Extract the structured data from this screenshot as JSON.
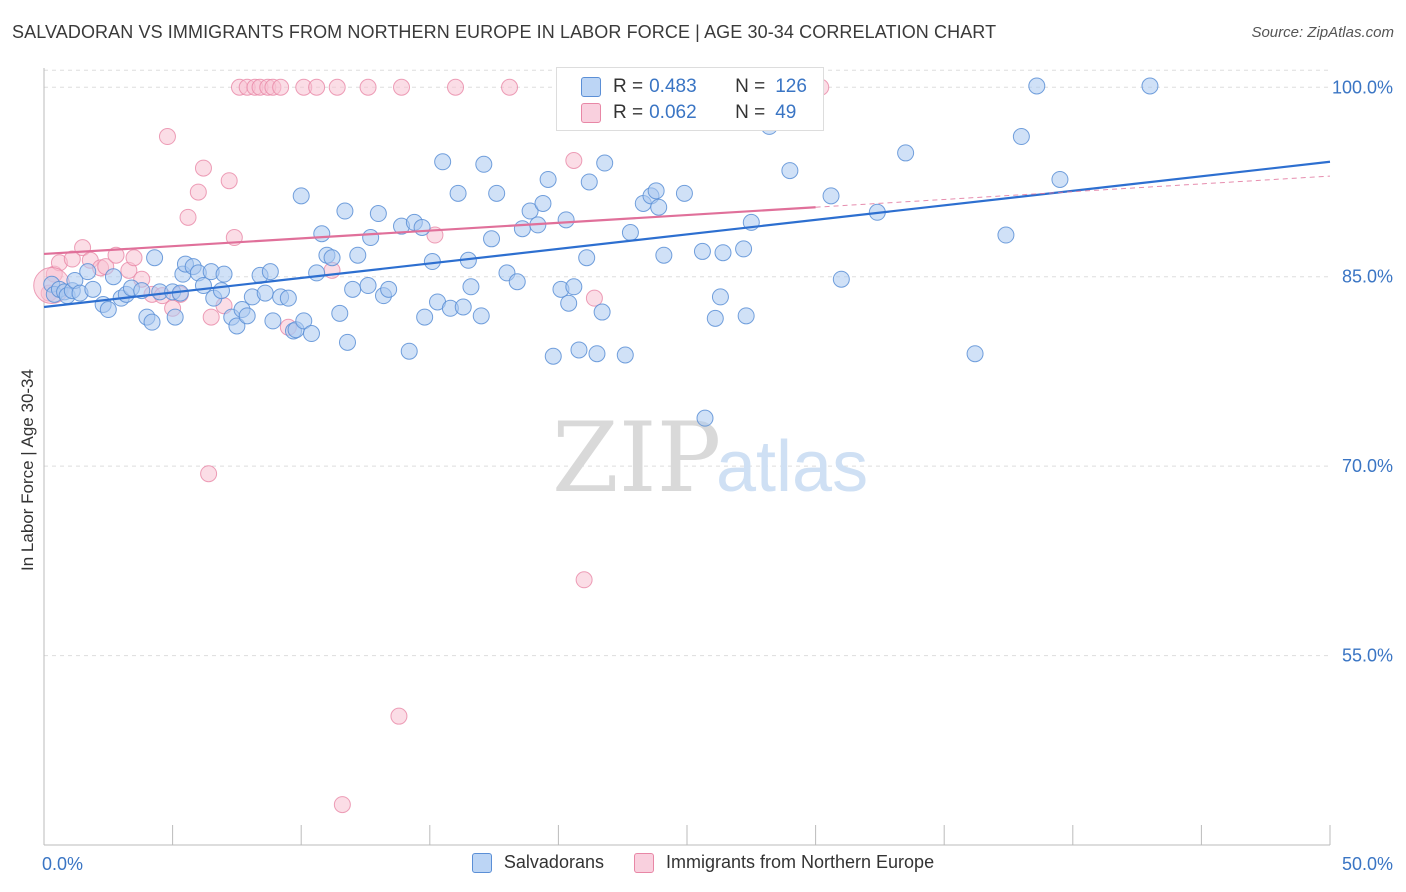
{
  "title": "SALVADORAN VS IMMIGRANTS FROM NORTHERN EUROPE IN LABOR FORCE | AGE 30-34 CORRELATION CHART",
  "source": "Source: ZipAtlas.com",
  "watermark": {
    "zip": "ZIP",
    "atlas": "atlas"
  },
  "legend": {
    "r_label": "R =",
    "n_label": "N =",
    "rows": [
      {
        "r": "0.483",
        "n": "126"
      },
      {
        "r": "0.062",
        "n": "49"
      }
    ]
  },
  "colors": {
    "blue_fill": "#a9c8f0",
    "blue_stroke": "#5b8fd6",
    "blue_line": "#2d6fd0",
    "pink_fill": "#f7c1d2",
    "pink_stroke": "#e887a6",
    "pink_line": "#e0709a",
    "axis_text": "#3a75c4",
    "grid": "#dddddd"
  },
  "chart_data": {
    "type": "scatter",
    "xlabel": "",
    "ylabel": "In Labor Force | Age 30-34",
    "xlim": [
      0,
      50
    ],
    "ylim": [
      40,
      102
    ],
    "x_tick_labels": [
      "0.0%",
      "50.0%"
    ],
    "y_ticks": [
      {
        "value": 100,
        "label": "100.0%"
      },
      {
        "value": 85,
        "label": "85.0%"
      },
      {
        "value": 70,
        "label": "70.0%"
      },
      {
        "value": 55,
        "label": "55.0%"
      }
    ],
    "grid": true,
    "series": [
      {
        "name": "Salvadorans",
        "color": "#a9c8f0",
        "trend": {
          "x0": 0,
          "y0": 82.6,
          "x1": 50,
          "y1": 94.1
        },
        "points": [
          [
            0.3,
            84.4
          ],
          [
            0.4,
            83.6
          ],
          [
            0.6,
            84.0
          ],
          [
            0.8,
            83.8
          ],
          [
            0.9,
            83.5
          ],
          [
            1.1,
            83.9
          ],
          [
            1.2,
            84.7
          ],
          [
            1.4,
            83.7
          ],
          [
            1.7,
            85.4
          ],
          [
            1.9,
            84.0
          ],
          [
            2.3,
            82.8
          ],
          [
            2.5,
            82.4
          ],
          [
            2.7,
            85.0
          ],
          [
            3.0,
            83.3
          ],
          [
            3.2,
            83.6
          ],
          [
            3.4,
            84.1
          ],
          [
            3.8,
            83.9
          ],
          [
            4.0,
            81.8
          ],
          [
            4.2,
            81.4
          ],
          [
            4.3,
            86.5
          ],
          [
            4.5,
            83.8
          ],
          [
            5.0,
            83.8
          ],
          [
            5.1,
            81.8
          ],
          [
            5.3,
            83.7
          ],
          [
            5.4,
            85.2
          ],
          [
            5.5,
            86.0
          ],
          [
            5.8,
            85.8
          ],
          [
            6.0,
            85.3
          ],
          [
            6.2,
            84.3
          ],
          [
            6.5,
            85.4
          ],
          [
            6.6,
            83.3
          ],
          [
            6.9,
            83.9
          ],
          [
            7.0,
            85.2
          ],
          [
            7.3,
            81.8
          ],
          [
            7.5,
            81.1
          ],
          [
            7.7,
            82.4
          ],
          [
            7.9,
            81.9
          ],
          [
            8.1,
            83.4
          ],
          [
            8.4,
            85.1
          ],
          [
            8.6,
            83.7
          ],
          [
            8.8,
            85.4
          ],
          [
            8.9,
            81.5
          ],
          [
            9.2,
            83.4
          ],
          [
            9.5,
            83.3
          ],
          [
            9.7,
            80.7
          ],
          [
            9.8,
            80.8
          ],
          [
            10.0,
            91.4
          ],
          [
            10.1,
            81.5
          ],
          [
            10.4,
            80.5
          ],
          [
            10.6,
            85.3
          ],
          [
            10.8,
            88.4
          ],
          [
            11.0,
            86.7
          ],
          [
            11.2,
            86.5
          ],
          [
            11.5,
            82.1
          ],
          [
            11.7,
            90.2
          ],
          [
            11.8,
            79.8
          ],
          [
            12.0,
            84.0
          ],
          [
            12.2,
            86.7
          ],
          [
            12.6,
            84.3
          ],
          [
            12.7,
            88.1
          ],
          [
            13.0,
            90.0
          ],
          [
            13.2,
            83.5
          ],
          [
            13.4,
            84.0
          ],
          [
            13.9,
            89.0
          ],
          [
            14.2,
            79.1
          ],
          [
            14.4,
            89.3
          ],
          [
            14.7,
            88.9
          ],
          [
            14.8,
            81.8
          ],
          [
            15.1,
            86.2
          ],
          [
            15.3,
            83.0
          ],
          [
            15.5,
            94.1
          ],
          [
            15.8,
            82.5
          ],
          [
            16.1,
            91.6
          ],
          [
            16.3,
            82.6
          ],
          [
            16.5,
            86.3
          ],
          [
            16.6,
            84.2
          ],
          [
            17.0,
            81.9
          ],
          [
            17.1,
            93.9
          ],
          [
            17.4,
            88.0
          ],
          [
            17.6,
            91.6
          ],
          [
            18.0,
            85.3
          ],
          [
            18.4,
            84.6
          ],
          [
            18.6,
            88.8
          ],
          [
            18.9,
            90.2
          ],
          [
            19.2,
            89.1
          ],
          [
            19.4,
            90.8
          ],
          [
            19.6,
            92.7
          ],
          [
            19.8,
            78.7
          ],
          [
            20.1,
            84.0
          ],
          [
            20.3,
            89.5
          ],
          [
            20.4,
            82.9
          ],
          [
            20.6,
            84.2
          ],
          [
            20.8,
            79.2
          ],
          [
            21.1,
            86.5
          ],
          [
            21.2,
            92.5
          ],
          [
            21.5,
            78.9
          ],
          [
            21.7,
            82.2
          ],
          [
            21.8,
            94.0
          ],
          [
            22.6,
            78.8
          ],
          [
            22.8,
            88.5
          ],
          [
            23.3,
            90.8
          ],
          [
            23.6,
            91.4
          ],
          [
            23.8,
            91.8
          ],
          [
            23.9,
            90.5
          ],
          [
            24.1,
            86.7
          ],
          [
            24.9,
            91.6
          ],
          [
            25.6,
            87.0
          ],
          [
            25.7,
            73.8
          ],
          [
            26.0,
            100.1
          ],
          [
            26.1,
            81.7
          ],
          [
            26.3,
            83.4
          ],
          [
            26.4,
            86.9
          ],
          [
            27.2,
            87.2
          ],
          [
            27.3,
            81.9
          ],
          [
            27.5,
            89.3
          ],
          [
            28.2,
            96.9
          ],
          [
            29.0,
            93.4
          ],
          [
            30.6,
            91.4
          ],
          [
            31.0,
            84.8
          ],
          [
            32.4,
            90.1
          ],
          [
            33.5,
            94.8
          ],
          [
            36.2,
            78.9
          ],
          [
            37.4,
            88.3
          ],
          [
            38.0,
            96.1
          ],
          [
            38.6,
            100.1
          ],
          [
            39.5,
            92.7
          ],
          [
            43.0,
            100.1
          ]
        ]
      },
      {
        "name": "Immigrants from Northern Europe",
        "color": "#f7c1d2",
        "trend": {
          "x0": 0,
          "y0": 86.8,
          "x1": 30,
          "y1": 90.5
        },
        "points": [
          [
            0.2,
            83.7
          ],
          [
            0.4,
            85.2
          ],
          [
            0.6,
            86.1
          ],
          [
            1.1,
            86.4
          ],
          [
            1.5,
            87.3
          ],
          [
            1.8,
            86.3
          ],
          [
            2.2,
            85.7
          ],
          [
            2.4,
            85.8
          ],
          [
            2.8,
            86.7
          ],
          [
            3.3,
            85.5
          ],
          [
            3.5,
            86.5
          ],
          [
            3.8,
            84.8
          ],
          [
            4.2,
            83.6
          ],
          [
            4.6,
            83.5
          ],
          [
            4.8,
            96.1
          ],
          [
            5.0,
            82.5
          ],
          [
            5.3,
            83.6
          ],
          [
            5.6,
            89.7
          ],
          [
            6.0,
            91.7
          ],
          [
            6.2,
            93.6
          ],
          [
            6.4,
            69.4
          ],
          [
            6.5,
            81.8
          ],
          [
            7.0,
            82.7
          ],
          [
            7.2,
            92.6
          ],
          [
            7.4,
            88.1
          ],
          [
            7.6,
            100.0
          ],
          [
            7.9,
            100.0
          ],
          [
            8.2,
            100.0
          ],
          [
            8.4,
            100.0
          ],
          [
            8.7,
            100.0
          ],
          [
            8.9,
            100.0
          ],
          [
            9.2,
            100.0
          ],
          [
            9.5,
            81.0
          ],
          [
            10.1,
            100.0
          ],
          [
            10.6,
            100.0
          ],
          [
            11.2,
            85.5
          ],
          [
            11.4,
            100.0
          ],
          [
            11.6,
            43.2
          ],
          [
            12.6,
            100.0
          ],
          [
            13.8,
            50.2
          ],
          [
            13.9,
            100.0
          ],
          [
            15.2,
            88.3
          ],
          [
            16.0,
            100.0
          ],
          [
            18.1,
            100.0
          ],
          [
            20.6,
            94.2
          ],
          [
            21.0,
            61.0
          ],
          [
            21.4,
            83.3
          ],
          [
            30.2,
            100.0
          ],
          [
            0.3,
            84.3
          ]
        ]
      }
    ]
  }
}
